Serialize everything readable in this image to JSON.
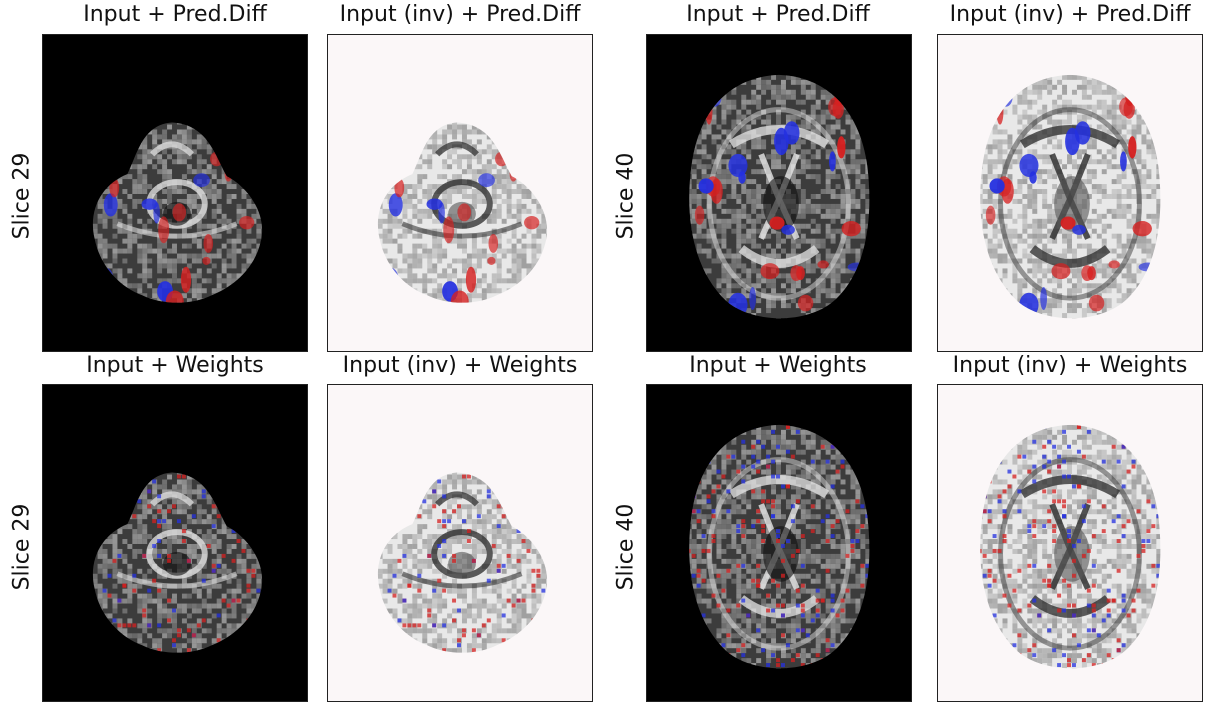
{
  "figure": {
    "rows": [
      {
        "label": "Slice 29",
        "panels": [
          {
            "title": "Input + Pred.Diff",
            "mode": "dark",
            "kind": "pred"
          },
          {
            "title": "Input (inv) + Pred.Diff",
            "mode": "light",
            "kind": "pred"
          }
        ]
      },
      {
        "label": "Slice 29",
        "panels": [
          {
            "title": "Input + Weights",
            "mode": "dark",
            "kind": "weights"
          },
          {
            "title": "Input (inv) + Weights",
            "mode": "light",
            "kind": "weights"
          }
        ]
      }
    ],
    "rows_right": [
      {
        "label": "Slice 40",
        "panels": [
          {
            "title": "Input + Pred.Diff",
            "mode": "dark",
            "kind": "pred"
          },
          {
            "title": "Input (inv) + Pred.Diff",
            "mode": "light",
            "kind": "pred"
          }
        ]
      },
      {
        "label": "Slice 40",
        "panels": [
          {
            "title": "Input + Weights",
            "mode": "dark",
            "kind": "weights"
          },
          {
            "title": "Input (inv) + Weights",
            "mode": "light",
            "kind": "weights"
          }
        ]
      }
    ]
  },
  "colors": {
    "positive": "#d62020",
    "negative": "#2430e0",
    "dark_bg": "#000000",
    "light_bg": "#fbf7f8"
  }
}
